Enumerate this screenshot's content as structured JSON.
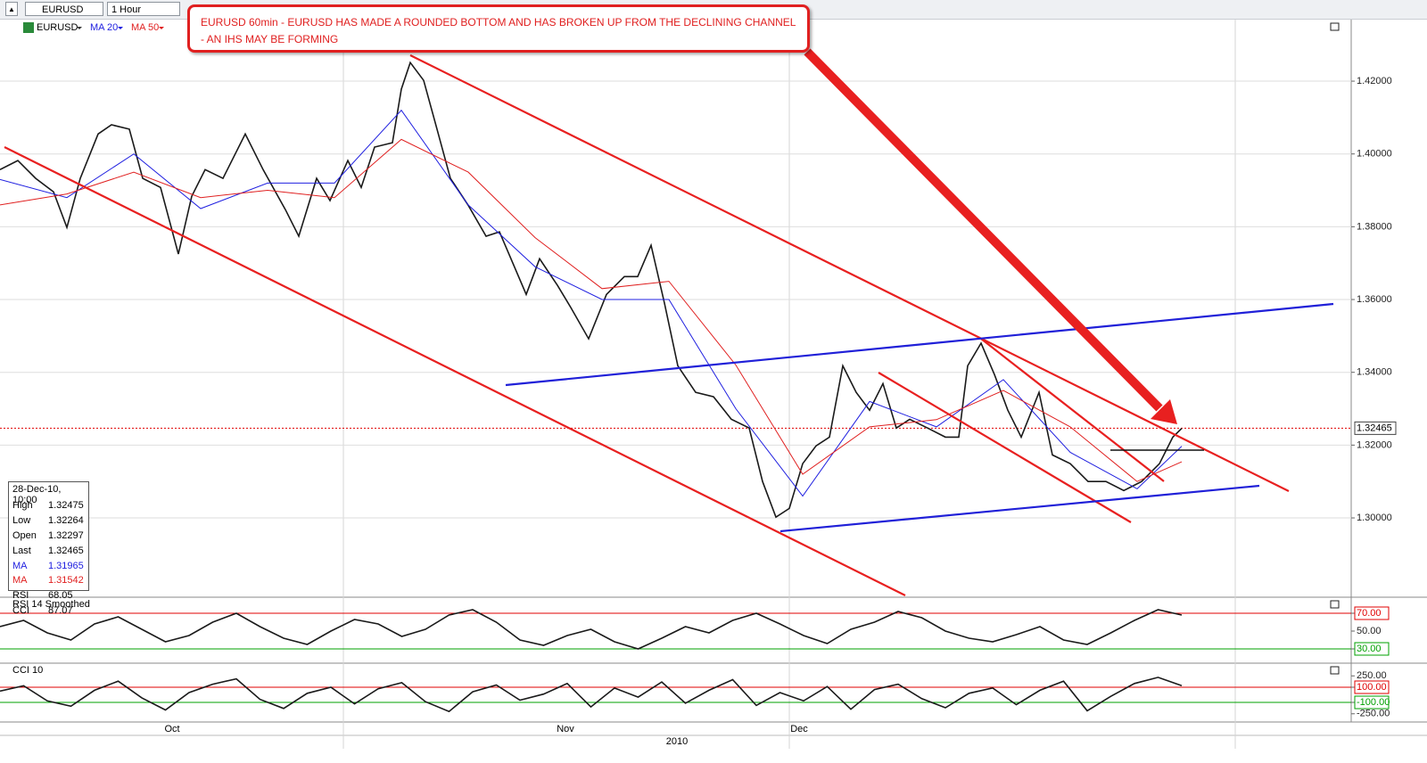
{
  "toolbar": {
    "symbol": "EURUSD",
    "interval": "1 Hour"
  },
  "annotation": [
    "EURUSD 60min - EURUSD HAS MADE A ROUNDED BOTTOM AND HAS BROKEN UP FROM THE DECLINING CHANNEL",
    "- AN IHS MAY BE FORMING"
  ],
  "info_box": {
    "date": "28-Dec-10, 10:00",
    "rows": [
      [
        "High",
        "1.32475"
      ],
      [
        "Low",
        "1.32264"
      ],
      [
        "Open",
        "1.32297"
      ],
      [
        "Last",
        "1.32465"
      ],
      [
        "MA",
        "1.31965"
      ],
      [
        "MA",
        "1.31542"
      ],
      [
        "RSI",
        "68.05"
      ],
      [
        "CCI",
        "87.07"
      ]
    ]
  },
  "chart_data": [
    {
      "type": "line",
      "grid": true,
      "xlim": [
        0,
        151.5
      ],
      "ylim": [
        1.2787,
        1.4374
      ],
      "yticks": [
        {
          "value": 1.3,
          "label": "1.30000"
        },
        {
          "value": 1.32,
          "label": "1.32000"
        },
        {
          "value": 1.34,
          "label": "1.34000"
        },
        {
          "value": 1.36,
          "label": "1.36000"
        },
        {
          "value": 1.38,
          "label": "1.38000"
        },
        {
          "value": 1.4,
          "label": "1.40000"
        },
        {
          "value": 1.42,
          "label": "1.42000"
        }
      ],
      "xgrid": [
        38.5,
        88.5,
        138.5
      ],
      "xlabels": [
        {
          "value": 19.3,
          "label": "Oct"
        },
        {
          "value": 63.4,
          "label": "Nov"
        },
        {
          "value": 89.6,
          "label": "Dec"
        }
      ],
      "year_label": {
        "value": 75.9,
        "label": "2010"
      },
      "last": {
        "value": 1.32465,
        "label": "1.32465",
        "color": "#e00000"
      },
      "series": [
        {
          "name": "EURUSD",
          "color": "#1a1a1a",
          "x": [
            0,
            2,
            4,
            6,
            7.5,
            9,
            11,
            12.5,
            14.5,
            16,
            18,
            20,
            21.5,
            23,
            25,
            27.5,
            29.5,
            32,
            33.5,
            35.5,
            37,
            39,
            40.5,
            42,
            44,
            45,
            46,
            47.5,
            49,
            50.5,
            52.5,
            54.5,
            56,
            57.5,
            59,
            60.5,
            62.5,
            64,
            66,
            68,
            70,
            71.5,
            73,
            74.5,
            76,
            78,
            80,
            82,
            84,
            85.5,
            87,
            88.5,
            90,
            91.5,
            93,
            94.5,
            96,
            97.5,
            99,
            100.5,
            102,
            104,
            106,
            107.5,
            108.5,
            110,
            111.5,
            113,
            114.5,
            116.5,
            118,
            120,
            122,
            124,
            126,
            128,
            130,
            131.5,
            132.5
          ],
          "values": [
            1.3957,
            1.3982,
            1.3933,
            1.3896,
            1.3798,
            1.3933,
            1.4055,
            1.408,
            1.4068,
            1.3933,
            1.3908,
            1.3725,
            1.3884,
            1.3957,
            1.3933,
            1.4055,
            1.3957,
            1.3847,
            1.3774,
            1.3933,
            1.3872,
            1.3982,
            1.3908,
            1.4019,
            1.4031,
            1.4178,
            1.4251,
            1.4202,
            1.4068,
            1.3933,
            1.3859,
            1.3774,
            1.3786,
            1.37,
            1.3614,
            1.3712,
            1.3639,
            1.3578,
            1.3492,
            1.3614,
            1.3663,
            1.3663,
            1.3749,
            1.359,
            1.3418,
            1.3345,
            1.3333,
            1.3271,
            1.3247,
            1.31,
            1.3002,
            1.3026,
            1.3149,
            1.3198,
            1.3222,
            1.3418,
            1.3345,
            1.3296,
            1.3369,
            1.3247,
            1.3271,
            1.3247,
            1.3222,
            1.3222,
            1.3418,
            1.348,
            1.3394,
            1.3296,
            1.3222,
            1.3345,
            1.3173,
            1.3149,
            1.31,
            1.31,
            1.3075,
            1.31,
            1.3149,
            1.3222,
            1.3246
          ]
        },
        {
          "name": "MA 20",
          "color": "#2020e0",
          "x": [
            0,
            7.5,
            15,
            22.5,
            30,
            37.5,
            45,
            52.5,
            60,
            67.5,
            75,
            82.5,
            90,
            97.5,
            105,
            112.5,
            120,
            127.5,
            132.5
          ],
          "values": [
            1.393,
            1.388,
            1.4,
            1.385,
            1.392,
            1.392,
            1.412,
            1.386,
            1.369,
            1.36,
            1.36,
            1.33,
            1.306,
            1.332,
            1.325,
            1.338,
            1.318,
            1.308,
            1.3197
          ]
        },
        {
          "name": "MA 50",
          "color": "#e02020",
          "x": [
            0,
            7.5,
            15,
            22.5,
            30,
            37.5,
            45,
            52.5,
            60,
            67.5,
            75,
            82.5,
            90,
            97.5,
            105,
            112.5,
            120,
            127.5,
            132.5
          ],
          "values": [
            1.386,
            1.389,
            1.395,
            1.388,
            1.39,
            1.388,
            1.404,
            1.395,
            1.377,
            1.363,
            1.365,
            1.342,
            1.312,
            1.325,
            1.327,
            1.335,
            1.325,
            1.31,
            1.3154
          ]
        }
      ]
    },
    {
      "type": "line",
      "title": "RSI 14 Smoothed",
      "xlim": [
        0,
        57.17
      ],
      "ylim": [
        16,
        86
      ],
      "yticks": [
        {
          "value": 70,
          "label": "70.00"
        },
        {
          "value": 50,
          "label": "50.00"
        },
        {
          "value": 30,
          "label": "30.00"
        }
      ],
      "hlines": [
        {
          "value": 70,
          "color": "#e00000"
        },
        {
          "value": 30,
          "color": "#00a000"
        }
      ],
      "series": [
        {
          "color": "#1a1a1a",
          "values": [
            55,
            62,
            48,
            40,
            58,
            66,
            52,
            38,
            45,
            60,
            70,
            55,
            42,
            35,
            50,
            63,
            58,
            44,
            52,
            68,
            74,
            60,
            40,
            34,
            45,
            52,
            38,
            30,
            42,
            55,
            48,
            62,
            70,
            58,
            45,
            36,
            52,
            60,
            72,
            65,
            50,
            42,
            38,
            46,
            55,
            40,
            35,
            48,
            62,
            74,
            68
          ]
        }
      ]
    },
    {
      "type": "line",
      "title": "CCI 10",
      "xlim": [
        0,
        57.17
      ],
      "ylim": [
        -335,
        394
      ],
      "yticks": [
        {
          "value": 250,
          "label": "250.00"
        },
        {
          "value": 100,
          "label": "100.00"
        },
        {
          "value": -100,
          "label": "-100.00"
        },
        {
          "value": -250,
          "label": "-250.00"
        }
      ],
      "hlines": [
        {
          "value": 100,
          "color": "#e00000"
        },
        {
          "value": -100,
          "color": "#00a000"
        }
      ],
      "series": [
        {
          "color": "#1a1a1a",
          "values": [
            50,
            120,
            -80,
            -150,
            60,
            180,
            -40,
            -200,
            30,
            140,
            210,
            -60,
            -180,
            20,
            100,
            -120,
            80,
            160,
            -90,
            -220,
            40,
            130,
            -70,
            10,
            150,
            -160,
            90,
            -30,
            170,
            -110,
            60,
            200,
            -140,
            30,
            -80,
            110,
            -190,
            70,
            140,
            -50,
            -170,
            20,
            90,
            -130,
            60,
            180,
            -210,
            -20,
            150,
            230,
            120
          ]
        }
      ]
    }
  ]
}
